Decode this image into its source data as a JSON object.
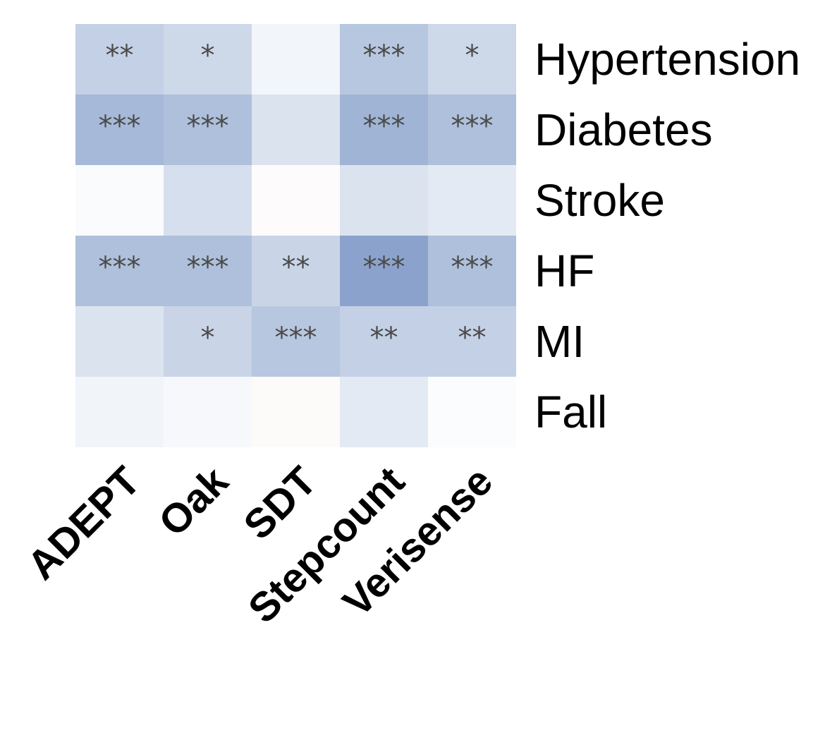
{
  "chart_data": {
    "type": "heatmap",
    "title": "",
    "xlabel": "",
    "ylabel": "",
    "columns": [
      "ADEPT",
      "Oak",
      "SDT",
      "Stepcount",
      "Verisense"
    ],
    "rows": [
      "Hypertension",
      "Diabetes",
      "Stroke",
      "HF",
      "MI",
      "Fall"
    ],
    "legend": "none",
    "grid": false,
    "colors": {
      "negative_end": "#4c72b0",
      "neutral": "#ffffff",
      "positive_end": "#c44e52"
    },
    "value_scale": [
      -1,
      1
    ],
    "values": [
      [
        -0.33,
        -0.28,
        -0.07,
        -0.4,
        -0.28
      ],
      [
        -0.5,
        -0.45,
        -0.2,
        -0.53,
        -0.45
      ],
      [
        -0.03,
        -0.23,
        0.02,
        -0.2,
        -0.15
      ],
      [
        -0.45,
        -0.45,
        -0.3,
        -0.65,
        -0.45
      ],
      [
        -0.2,
        -0.3,
        -0.4,
        -0.33,
        -0.33
      ],
      [
        -0.08,
        -0.05,
        0.03,
        -0.15,
        -0.02
      ]
    ],
    "annotations": [
      [
        "**",
        "*",
        "",
        "***",
        "*"
      ],
      [
        "***",
        "***",
        "",
        "***",
        "***"
      ],
      [
        "",
        "",
        "",
        "",
        ""
      ],
      [
        "***",
        "***",
        "**",
        "***",
        "***"
      ],
      [
        "",
        "*",
        "***",
        "**",
        "**"
      ],
      [
        "",
        "",
        "",
        "",
        ""
      ]
    ]
  }
}
